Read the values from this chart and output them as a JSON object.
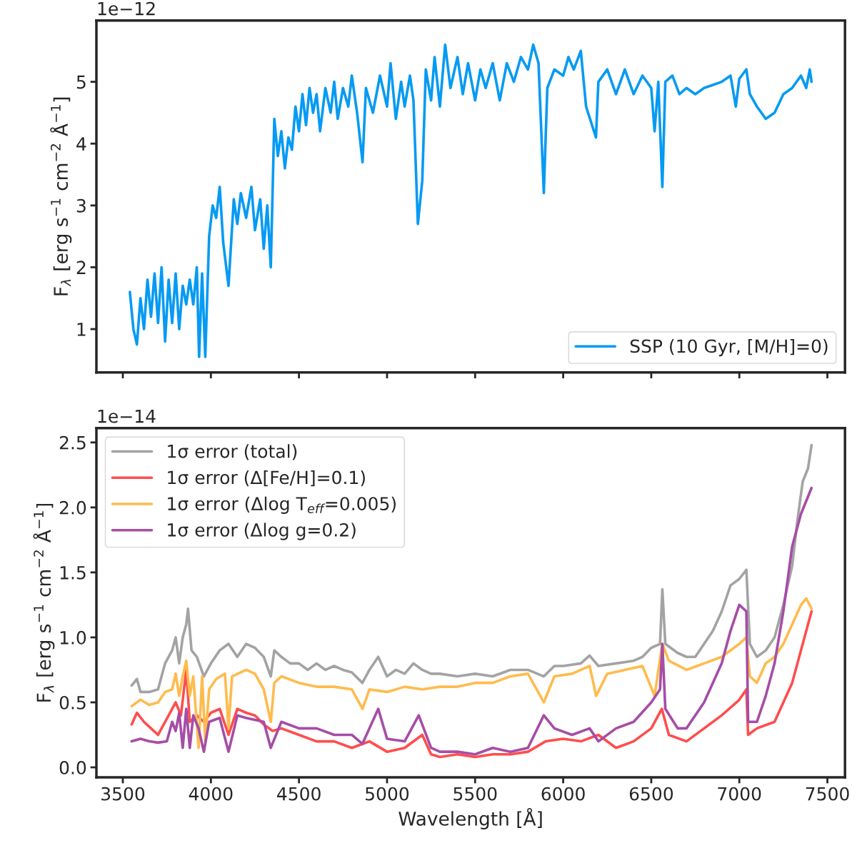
{
  "chart_data": [
    {
      "type": "line",
      "ylabel": "F$_{λ}$ [erg s$^{−1}$ cm$^{−2}$ Å$^{−1}$]",
      "annotations": [
        "1e−12"
      ],
      "xlim": [
        3350,
        7600
      ],
      "ylim": [
        0.3,
        5.99
      ],
      "xticks": [
        3500,
        4000,
        4500,
        5000,
        5500,
        6000,
        6500,
        7000,
        7500
      ],
      "yticks": [
        1,
        2,
        3,
        4,
        5
      ],
      "tick_labels": "y",
      "grid": false,
      "legend": "bottom right",
      "x": [
        3540,
        3560,
        3580,
        3600,
        3620,
        3640,
        3660,
        3680,
        3700,
        3720,
        3740,
        3760,
        3780,
        3800,
        3820,
        3840,
        3860,
        3880,
        3900,
        3920,
        3933,
        3950,
        3968,
        3990,
        4010,
        4030,
        4050,
        4070,
        4100,
        4130,
        4150,
        4170,
        4200,
        4230,
        4250,
        4280,
        4300,
        4320,
        4340,
        4360,
        4380,
        4400,
        4420,
        4440,
        4460,
        4480,
        4500,
        4520,
        4540,
        4560,
        4580,
        4600,
        4620,
        4650,
        4680,
        4700,
        4720,
        4750,
        4780,
        4800,
        4830,
        4861,
        4880,
        4920,
        4960,
        5000,
        5020,
        5050,
        5080,
        5100,
        5130,
        5150,
        5175,
        5200,
        5220,
        5250,
        5270,
        5300,
        5330,
        5360,
        5400,
        5430,
        5460,
        5500,
        5530,
        5560,
        5600,
        5640,
        5680,
        5720,
        5760,
        5800,
        5830,
        5860,
        5890,
        5910,
        5950,
        6000,
        6030,
        6060,
        6100,
        6130,
        6186,
        6200,
        6250,
        6300,
        6350,
        6400,
        6450,
        6500,
        6519,
        6540,
        6563,
        6580,
        6620,
        6660,
        6700,
        6750,
        6800,
        6850,
        6900,
        6950,
        6980,
        7000,
        7040,
        7060,
        7100,
        7150,
        7200,
        7250,
        7300,
        7350,
        7380,
        7400,
        7410
      ],
      "series": [
        {
          "name": "SSP (10 Gyr, [M/H]=0)",
          "color": "#069af3",
          "values": [
            1.6,
            1.0,
            0.75,
            1.5,
            1.0,
            1.8,
            1.2,
            1.9,
            1.1,
            2.0,
            0.8,
            1.8,
            1.1,
            1.9,
            1.0,
            1.7,
            1.4,
            1.8,
            1.4,
            2.0,
            0.55,
            1.9,
            0.55,
            2.5,
            3.0,
            2.8,
            3.3,
            2.4,
            1.7,
            3.1,
            2.7,
            3.2,
            2.8,
            3.3,
            2.6,
            3.1,
            2.3,
            3.0,
            2.0,
            4.4,
            3.8,
            4.2,
            3.6,
            4.1,
            3.9,
            4.6,
            4.2,
            4.8,
            4.3,
            4.9,
            4.5,
            4.8,
            4.2,
            4.9,
            4.5,
            5.0,
            4.4,
            4.9,
            4.6,
            5.1,
            4.5,
            3.7,
            4.9,
            4.5,
            5.1,
            4.6,
            5.3,
            4.4,
            5.0,
            4.6,
            5.1,
            4.7,
            2.7,
            3.4,
            5.2,
            4.7,
            5.4,
            4.6,
            5.6,
            4.9,
            5.4,
            4.8,
            5.3,
            4.7,
            5.2,
            4.9,
            5.3,
            4.7,
            5.3,
            5.0,
            5.4,
            5.2,
            5.6,
            5.3,
            3.2,
            4.9,
            5.2,
            5.1,
            5.4,
            5.2,
            5.5,
            4.6,
            4.1,
            5.0,
            5.2,
            4.8,
            5.2,
            4.8,
            5.1,
            4.9,
            4.2,
            5.0,
            3.3,
            5.0,
            5.1,
            4.8,
            4.9,
            4.8,
            4.9,
            4.95,
            5.0,
            5.1,
            4.6,
            5.05,
            5.2,
            4.8,
            4.6,
            4.4,
            4.5,
            4.8,
            4.9,
            5.1,
            4.9,
            5.2,
            5.0
          ]
        }
      ]
    },
    {
      "type": "line",
      "xlabel": "Wavelength [Å]",
      "ylabel": "F$_{λ}$ [erg s$^{−1}$ cm$^{−2}$ Å$^{−1}$]",
      "annotations": [
        "1e−14"
      ],
      "xlim": [
        3350,
        7600
      ],
      "ylim": [
        -0.077,
        2.61
      ],
      "xticks": [
        3500,
        4000,
        4500,
        5000,
        5500,
        6000,
        6500,
        7000,
        7500
      ],
      "yticks": [
        {
          "value": 0,
          "label": "0.0"
        },
        0.5,
        {
          "value": 1,
          "label": "1.0"
        },
        1.5,
        {
          "value": 2,
          "label": "2.0"
        },
        2.5
      ],
      "grid": false,
      "legend": "top left",
      "series": [
        {
          "name": "1σ error (total)",
          "color": "#a3a3a3",
          "x": [
            3550,
            3580,
            3600,
            3650,
            3700,
            3740,
            3780,
            3800,
            3820,
            3840,
            3860,
            3870,
            3890,
            3920,
            3960,
            4000,
            4050,
            4100,
            4150,
            4200,
            4250,
            4300,
            4340,
            4360,
            4400,
            4450,
            4500,
            4550,
            4600,
            4650,
            4700,
            4750,
            4800,
            4860,
            4900,
            4950,
            5000,
            5050,
            5100,
            5150,
            5200,
            5250,
            5300,
            5400,
            5500,
            5600,
            5700,
            5800,
            5890,
            5950,
            6000,
            6100,
            6150,
            6200,
            6300,
            6400,
            6450,
            6500,
            6550,
            6563,
            6580,
            6650,
            6700,
            6750,
            6800,
            6850,
            6900,
            6950,
            7000,
            7040,
            7060,
            7100,
            7150,
            7200,
            7250,
            7300,
            7330,
            7360,
            7390,
            7410
          ],
          "values": [
            0.63,
            0.68,
            0.58,
            0.58,
            0.6,
            0.8,
            0.9,
            1.0,
            0.8,
            1.0,
            1.1,
            1.22,
            0.9,
            0.85,
            0.7,
            0.8,
            0.9,
            0.95,
            0.85,
            0.95,
            0.92,
            0.85,
            0.7,
            0.9,
            0.85,
            0.8,
            0.8,
            0.75,
            0.8,
            0.75,
            0.78,
            0.75,
            0.73,
            0.65,
            0.75,
            0.85,
            0.7,
            0.75,
            0.72,
            0.8,
            0.75,
            0.72,
            0.72,
            0.7,
            0.72,
            0.7,
            0.75,
            0.75,
            0.7,
            0.78,
            0.78,
            0.8,
            0.86,
            0.78,
            0.8,
            0.82,
            0.85,
            0.92,
            0.95,
            1.37,
            0.95,
            0.88,
            0.85,
            0.85,
            0.95,
            1.05,
            1.2,
            1.4,
            1.45,
            1.52,
            0.95,
            0.85,
            0.9,
            1.0,
            1.25,
            1.55,
            1.9,
            2.2,
            2.3,
            2.48
          ]
        },
        {
          "name": "1σ error (Δ[Fe/H]=0.1)",
          "color": "#ff4d4d",
          "x": [
            3550,
            3580,
            3620,
            3660,
            3700,
            3740,
            3780,
            3800,
            3830,
            3860,
            3880,
            3920,
            3960,
            4000,
            4050,
            4100,
            4150,
            4200,
            4250,
            4300,
            4350,
            4400,
            4500,
            4600,
            4700,
            4800,
            4900,
            5000,
            5100,
            5200,
            5250,
            5300,
            5400,
            5500,
            5600,
            5700,
            5800,
            5900,
            6000,
            6100,
            6200,
            6300,
            6400,
            6500,
            6560,
            6600,
            6700,
            6800,
            6900,
            7000,
            7040,
            7050,
            7100,
            7200,
            7250,
            7300,
            7350,
            7410
          ],
          "values": [
            0.33,
            0.42,
            0.35,
            0.3,
            0.25,
            0.35,
            0.45,
            0.5,
            0.4,
            0.75,
            0.35,
            0.4,
            0.35,
            0.42,
            0.45,
            0.25,
            0.45,
            0.42,
            0.4,
            0.33,
            0.28,
            0.3,
            0.25,
            0.2,
            0.2,
            0.15,
            0.2,
            0.12,
            0.15,
            0.25,
            0.1,
            0.08,
            0.1,
            0.08,
            0.1,
            0.1,
            0.12,
            0.2,
            0.22,
            0.2,
            0.25,
            0.15,
            0.2,
            0.3,
            0.45,
            0.25,
            0.2,
            0.3,
            0.4,
            0.52,
            0.6,
            0.25,
            0.3,
            0.35,
            0.5,
            0.65,
            0.9,
            1.2
          ]
        },
        {
          "name": "1σ error (Δlog T$_{eff}$=0.005)",
          "color": "#ffbb4d",
          "x": [
            3550,
            3600,
            3650,
            3700,
            3740,
            3780,
            3800,
            3820,
            3840,
            3860,
            3880,
            3900,
            3930,
            3950,
            3968,
            3990,
            4030,
            4080,
            4100,
            4120,
            4200,
            4250,
            4300,
            4340,
            4360,
            4400,
            4500,
            4600,
            4700,
            4800,
            4861,
            4900,
            5000,
            5100,
            5200,
            5300,
            5400,
            5500,
            5600,
            5700,
            5800,
            5890,
            5950,
            6050,
            6150,
            6187,
            6250,
            6350,
            6450,
            6519,
            6563,
            6600,
            6700,
            6800,
            6900,
            7000,
            7040,
            7060,
            7100,
            7150,
            7200,
            7250,
            7300,
            7350,
            7380,
            7410
          ],
          "values": [
            0.47,
            0.52,
            0.48,
            0.5,
            0.58,
            0.6,
            0.72,
            0.55,
            0.7,
            0.82,
            0.55,
            0.7,
            0.15,
            0.7,
            0.2,
            0.6,
            0.68,
            0.72,
            0.3,
            0.7,
            0.75,
            0.72,
            0.6,
            0.35,
            0.65,
            0.7,
            0.65,
            0.62,
            0.62,
            0.6,
            0.45,
            0.6,
            0.58,
            0.62,
            0.6,
            0.62,
            0.62,
            0.65,
            0.65,
            0.7,
            0.72,
            0.5,
            0.7,
            0.72,
            0.78,
            0.55,
            0.72,
            0.75,
            0.78,
            0.55,
            0.95,
            0.82,
            0.75,
            0.8,
            0.85,
            0.95,
            1.0,
            0.7,
            0.65,
            0.8,
            0.85,
            0.95,
            1.1,
            1.25,
            1.3,
            1.22
          ]
        },
        {
          "name": "1σ error (Δlog g=0.2)",
          "color": "#a64da6",
          "x": [
            3550,
            3600,
            3650,
            3700,
            3750,
            3780,
            3800,
            3820,
            3840,
            3860,
            3880,
            3900,
            3930,
            3960,
            3990,
            4050,
            4100,
            4150,
            4200,
            4300,
            4340,
            4400,
            4500,
            4600,
            4700,
            4800,
            4860,
            4900,
            4950,
            5000,
            5100,
            5180,
            5250,
            5300,
            5400,
            5500,
            5600,
            5700,
            5800,
            5890,
            5950,
            6050,
            6150,
            6200,
            6300,
            6400,
            6500,
            6550,
            6563,
            6580,
            6650,
            6700,
            6800,
            6900,
            6950,
            7000,
            7040,
            7050,
            7100,
            7150,
            7200,
            7250,
            7300,
            7350,
            7410
          ],
          "values": [
            0.2,
            0.22,
            0.2,
            0.19,
            0.2,
            0.35,
            0.28,
            0.42,
            0.15,
            0.45,
            0.15,
            0.4,
            0.3,
            0.12,
            0.35,
            0.38,
            0.12,
            0.4,
            0.38,
            0.35,
            0.15,
            0.35,
            0.3,
            0.3,
            0.25,
            0.25,
            0.18,
            0.3,
            0.45,
            0.22,
            0.2,
            0.4,
            0.15,
            0.12,
            0.12,
            0.1,
            0.15,
            0.12,
            0.15,
            0.4,
            0.3,
            0.25,
            0.3,
            0.2,
            0.3,
            0.35,
            0.5,
            0.6,
            0.95,
            0.45,
            0.3,
            0.3,
            0.5,
            0.8,
            1.05,
            1.25,
            1.2,
            0.35,
            0.35,
            0.55,
            0.8,
            1.2,
            1.7,
            1.95,
            2.15
          ]
        }
      ]
    }
  ]
}
